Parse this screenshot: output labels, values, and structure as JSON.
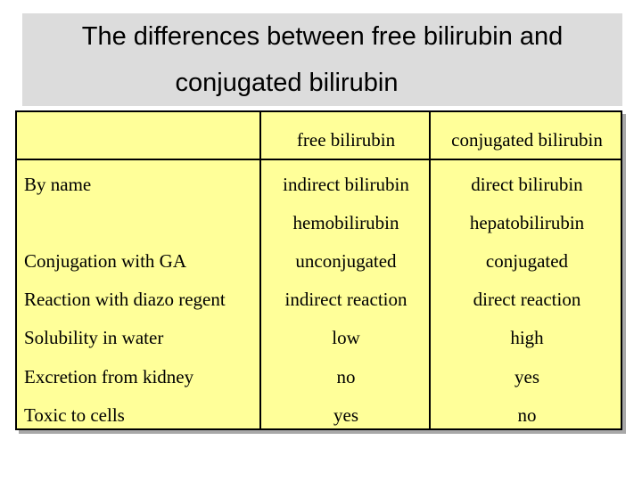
{
  "title": {
    "line1": "The differences between free bilirubin and",
    "line2": "conjugated bilirubin"
  },
  "table": {
    "headers": [
      "",
      "free bilirubin",
      "conjugated bilirubin"
    ],
    "rows": [
      {
        "label": "By name",
        "free": "indirect bilirubin",
        "conjugated": "direct bilirubin"
      },
      {
        "label": "",
        "free": "hemobilirubin",
        "conjugated": "hepatobilirubin"
      },
      {
        "label": "Conjugation with GA",
        "free": "unconjugated",
        "conjugated": "conjugated"
      },
      {
        "label": "Reaction with diazo regent",
        "free": "indirect reaction",
        "conjugated": "direct reaction"
      },
      {
        "label": "Solubility in water",
        "free": "low",
        "conjugated": "high"
      },
      {
        "label": "Excretion from kidney",
        "free": "no",
        "conjugated": "yes"
      },
      {
        "label": "Toxic to cells",
        "free": "yes",
        "conjugated": "no"
      }
    ]
  },
  "colors": {
    "title_background": "#dcdcdc",
    "table_background": "#ffff99"
  }
}
